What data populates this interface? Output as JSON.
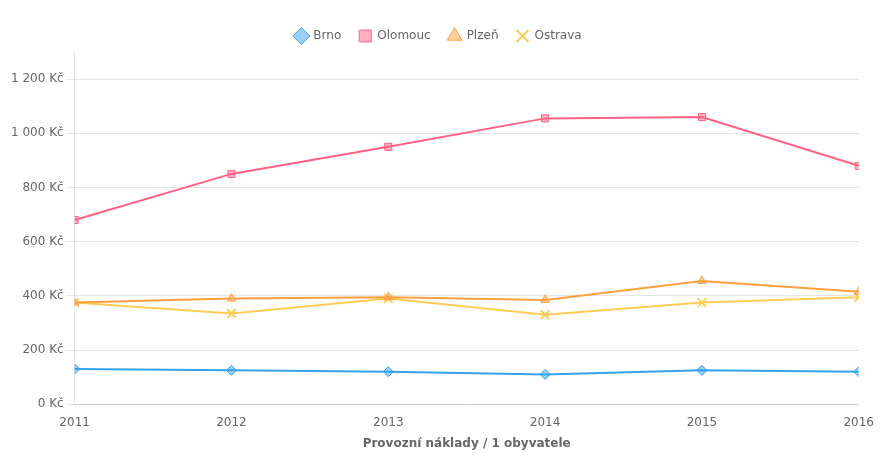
{
  "chart_data": {
    "type": "line",
    "x_label": "Provozní náklady / 1 obyvatele",
    "categories": [
      "2011",
      "2012",
      "2013",
      "2014",
      "2015",
      "2016"
    ],
    "series": [
      {
        "name": "Brno",
        "values": [
          130,
          125,
          120,
          110,
          125,
          120
        ],
        "marker": "diamond"
      },
      {
        "name": "Olomouc",
        "values": [
          680,
          850,
          950,
          1055,
          1060,
          880
        ],
        "marker": "square"
      },
      {
        "name": "Plzeň",
        "values": [
          375,
          390,
          395,
          385,
          455,
          415
        ],
        "marker": "triangle"
      },
      {
        "name": "Ostrava",
        "values": [
          375,
          335,
          390,
          330,
          375,
          395
        ],
        "marker": "x"
      }
    ],
    "ylim": [
      0,
      1300
    ],
    "yticks": [
      {
        "value": 0,
        "label": "0 Kč"
      },
      {
        "value": 200,
        "label": "200 Kč"
      },
      {
        "value": 400,
        "label": "400 Kč"
      },
      {
        "value": 600,
        "label": "600 Kč"
      },
      {
        "value": 800,
        "label": "800 Kč"
      },
      {
        "value": 1000,
        "label": "1 000 Kč"
      },
      {
        "value": 1200,
        "label": "1 200 Kč"
      }
    ],
    "grid": "y",
    "legend": "top"
  }
}
